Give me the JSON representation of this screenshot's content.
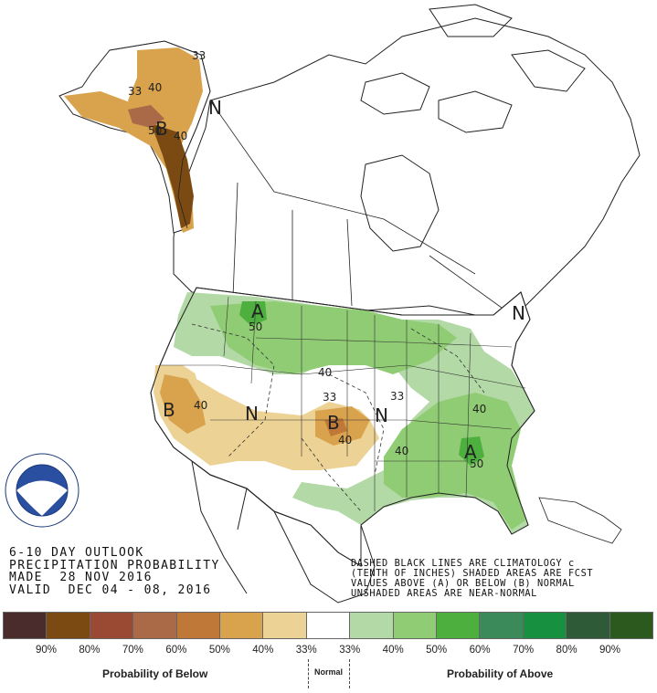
{
  "header": {
    "line1": "6-10 DAY OUTLOOK",
    "line2": "PRECIPITATION PROBABILITY",
    "line3": "MADE  28 NOV 2016",
    "line4": "VALID  DEC 04 - 08, 2016"
  },
  "note": {
    "line1": "DASHED BLACK LINES ARE CLIMATOLOGY c",
    "line2": "(TENTH OF INCHES) SHADED AREAS ARE FCST",
    "line3": "VALUES ABOVE (A) OR BELOW (B) NORMAL",
    "line4": "UNSHADED AREAS ARE NEAR-NORMAL"
  },
  "logo": {
    "text": "NOAA",
    "ring_text": "NATIONAL OCEANIC AND ATMOSPHERIC ADMINISTRATION · U.S. DEPARTMENT OF COMMERCE"
  },
  "legend": {
    "swatch_colors": [
      "#4a2c2c",
      "#7a4a12",
      "#9a4a32",
      "#aa6a48",
      "#c07838",
      "#d9a34e",
      "#ecd294",
      "#ffffff",
      "#b3d9a6",
      "#8fcc73",
      "#4caf3e",
      "#3a8a5a",
      "#179140",
      "#2e5a38",
      "#2c5a1e"
    ],
    "ticks": [
      "90%",
      "80%",
      "70%",
      "60%",
      "50%",
      "40%",
      "33%",
      "33%",
      "40%",
      "50%",
      "60%",
      "70%",
      "80%",
      "90%"
    ],
    "below_title": "Probability of Below",
    "normal_title": "Normal",
    "above_title": "Probability of Above"
  },
  "map_labels": {
    "alaska_b": "B",
    "alaska_n": "N",
    "alaska_33": "33",
    "alaska_40": "40",
    "alaska_40b": "40",
    "alaska_33b": "33",
    "alaska_50": "50",
    "ca_b": "B",
    "ca_40": "40",
    "plains_b": "B",
    "plains_40": "40",
    "plains_33": "33",
    "west_n": "N",
    "central_n": "N",
    "central_33": "33",
    "nw_a": "A",
    "nw_50": "50",
    "north_40": "40",
    "se_a": "A",
    "se_50": "50",
    "se_40": "40",
    "south_40": "40",
    "ne_n": "N"
  }
}
